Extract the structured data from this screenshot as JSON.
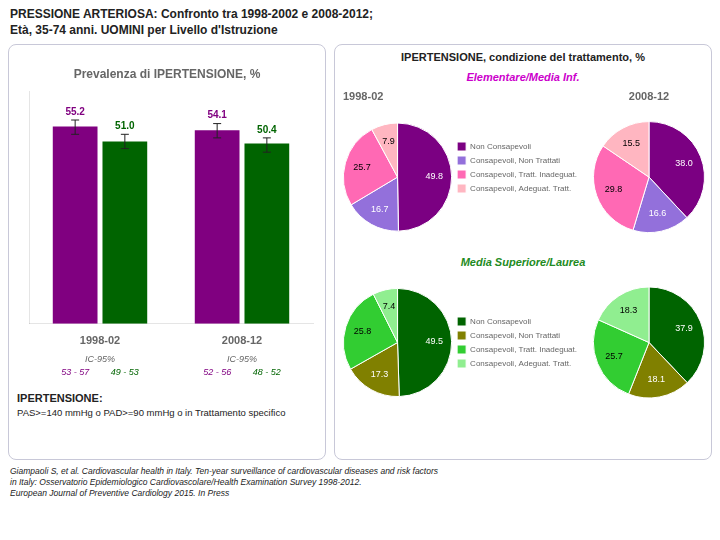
{
  "title": "PRESSIONE ARTERIOSA: Confronto tra 1998-2002 e 2008-2012;",
  "subtitle": "Età, 35-74 anni. UOMINI per Livello d'Istruzione",
  "annotations": [
    "Giampaoli S, et al. Cardiovascular health in Italy. Ten-year surveillance of cardiovascular diseases and risk factors",
    "in Italy: Osservatorio Epidemiologico Cardiovascolare/Health Examination Survey 1998-2012.",
    "European Journal of Preventive Cardiology 2015. In Press"
  ],
  "chart_data": [
    {
      "type": "bar",
      "title": "Prevalenza di IPERTENSIONE, %",
      "categories": [
        "1998-02",
        "2008-12"
      ],
      "series": [
        {
          "color": "#800080",
          "values": [
            55.2,
            54.1
          ],
          "ci": [
            [
              53,
              57
            ],
            [
              52,
              56
            ]
          ],
          "ci_labels": [
            "53 - 57",
            "52 - 56"
          ]
        },
        {
          "color": "#006400",
          "values": [
            51.0,
            50.4
          ],
          "value_labels": [
            "51.0",
            "50.4"
          ],
          "ci": [
            [
              49,
              53
            ],
            [
              48,
              52
            ]
          ],
          "ci_labels": [
            "49 - 53",
            "48 - 52"
          ]
        }
      ],
      "ci_label": "IC-95%",
      "ylim": [
        0,
        65
      ],
      "grid": false,
      "legend": false,
      "data_labels": true,
      "tick_labels": "x",
      "annotations": [
        "IPERTENSIONE:",
        "PAS>=140 mmHg o PAD>=90 mmHg o in Trattamento specifico"
      ]
    },
    {
      "type": "pie",
      "title": "1998-02",
      "subtitle": "Elementare/Media Inf.",
      "subtitle_color": "#cc00cc",
      "annotations": [
        "IPERTENSIONE, condizione del trattamento, %"
      ],
      "categories": [
        "Non Consapevoli",
        "Consapevoli, Non Trattati",
        "Consapevoli, Tratt. Inadeguat.",
        "Consapevoli, Adeguat. Tratt."
      ],
      "values": [
        49.8,
        16.7,
        25.7,
        7.9
      ],
      "colors": [
        "#7B0082",
        "#9370DB",
        "#FF69B4",
        "#FFB6C1"
      ],
      "legend": "right",
      "data_labels": true
    },
    {
      "type": "pie",
      "title": "2008-12",
      "categories": [
        "Non Consapevoli",
        "Consapevoli, Non Trattati",
        "Consapevoli, Tratt. Inadeguat.",
        "Consapevoli, Adeguat. Tratt."
      ],
      "values": [
        38.0,
        16.6,
        29.8,
        15.5
      ],
      "value_labels": [
        "38.0",
        "16.6",
        "29.8",
        "15.5"
      ],
      "colors": [
        "#7B0082",
        "#9370DB",
        "#FF69B4",
        "#FFB6C1"
      ],
      "legend": false,
      "data_labels": true
    },
    {
      "type": "pie",
      "subtitle": "Media Superiore/Laurea",
      "subtitle_color": "#228B22",
      "categories": [
        "Non Consapevoli",
        "Consapevoli, Non Trattati",
        "Consapevoli, Tratt. Inadeguat.",
        "Consapevoli, Adeguat. Tratt."
      ],
      "values": [
        49.5,
        17.3,
        25.8,
        7.4
      ],
      "colors": [
        "#006400",
        "#808000",
        "#32CD32",
        "#90EE90"
      ],
      "legend": "right",
      "data_labels": true
    },
    {
      "type": "pie",
      "categories": [
        "Non Consapevoli",
        "Consapevoli, Non Trattati",
        "Consapevoli, Tratt. Inadeguat.",
        "Consapevoli, Adeguat. Tratt."
      ],
      "values": [
        37.9,
        18.1,
        25.7,
        18.3
      ],
      "colors": [
        "#006400",
        "#808000",
        "#32CD32",
        "#90EE90"
      ],
      "legend": false,
      "data_labels": true
    }
  ]
}
